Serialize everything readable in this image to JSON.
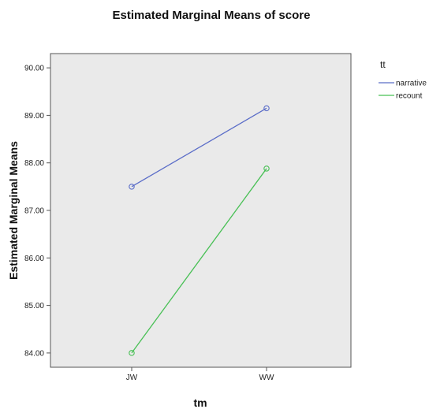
{
  "chart_data": {
    "type": "line",
    "title": "Estimated Marginal Means of score",
    "xlabel": "tm",
    "ylabel": "Estimated Marginal Means",
    "categories": [
      "JW",
      "WW"
    ],
    "ylim": [
      83.7,
      90.3
    ],
    "yticks": [
      "84.00",
      "85.00",
      "86.00",
      "87.00",
      "88.00",
      "89.00",
      "90.00"
    ],
    "grid": false,
    "legend": {
      "title": "tt",
      "position": "right"
    },
    "series": [
      {
        "name": "narrative",
        "values": [
          87.5,
          89.15
        ],
        "color": "#5b6dc8"
      },
      {
        "name": "recount",
        "values": [
          84.0,
          87.88
        ],
        "color": "#48c055"
      }
    ],
    "colors": {
      "plot_background": "#eaeaea",
      "frame": "#555555"
    }
  }
}
